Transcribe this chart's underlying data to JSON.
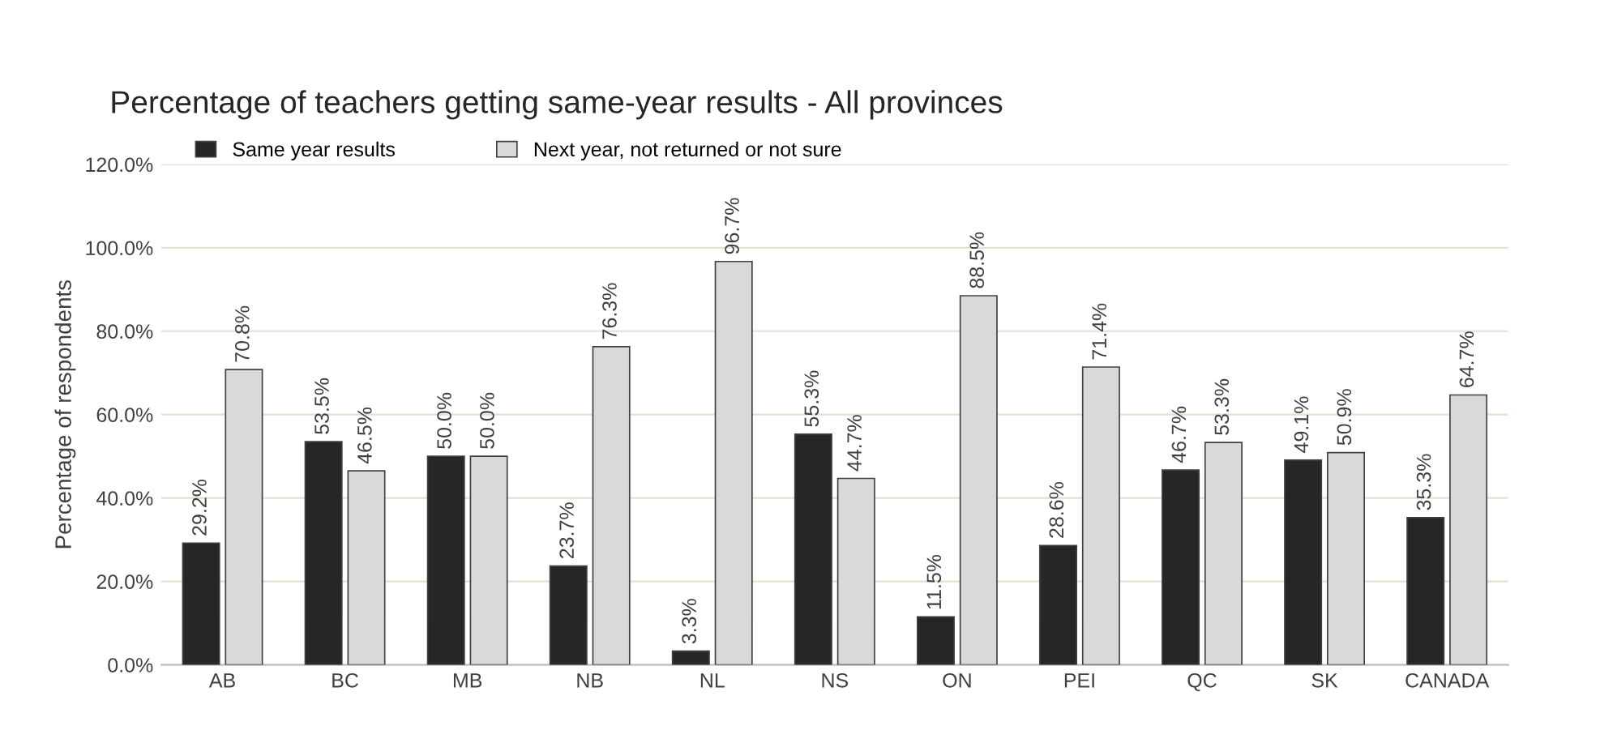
{
  "chart_data": {
    "type": "bar",
    "title": "Percentage of teachers getting same-year results - All provinces",
    "ylabel": "Percentage of respondents",
    "categories": [
      "AB",
      "BC",
      "MB",
      "NB",
      "NL",
      "NS",
      "ON",
      "PEI",
      "QC",
      "SK",
      "CANADA"
    ],
    "series": [
      {
        "name": "Same year results",
        "color": "#262626",
        "values": [
          29.2,
          53.5,
          50.0,
          23.7,
          3.3,
          55.3,
          11.5,
          28.6,
          46.7,
          49.1,
          35.3
        ],
        "value_labels": [
          "29.2%",
          "53.5%",
          "50.0%",
          "23.7%",
          "3.3%",
          "55.3%",
          "11.5%",
          "28.6%",
          "46.7%",
          "49.1%",
          "35.3%"
        ]
      },
      {
        "name": "Next year, not returned or not sure",
        "color": "#d9d9d9",
        "values": [
          70.8,
          46.5,
          50.0,
          76.3,
          96.7,
          44.7,
          88.5,
          71.4,
          53.3,
          50.9,
          64.7
        ],
        "value_labels": [
          "70.8%",
          "46.5%",
          "50.0%",
          "76.3%",
          "96.7%",
          "44.7%",
          "88.5%",
          "71.4%",
          "53.3%",
          "50.9%",
          "64.7%"
        ]
      }
    ],
    "ylim": [
      0,
      120
    ],
    "yticks": [
      {
        "value": 0,
        "label": "0.0%"
      },
      {
        "value": 20,
        "label": "20.0%"
      },
      {
        "value": 40,
        "label": "40.0%"
      },
      {
        "value": 60,
        "label": "60.0%"
      },
      {
        "value": 80,
        "label": "80.0%"
      },
      {
        "value": 100,
        "label": "100.0%"
      },
      {
        "value": 120,
        "label": "120.0%"
      }
    ],
    "grid": "y",
    "legend": "top left"
  }
}
